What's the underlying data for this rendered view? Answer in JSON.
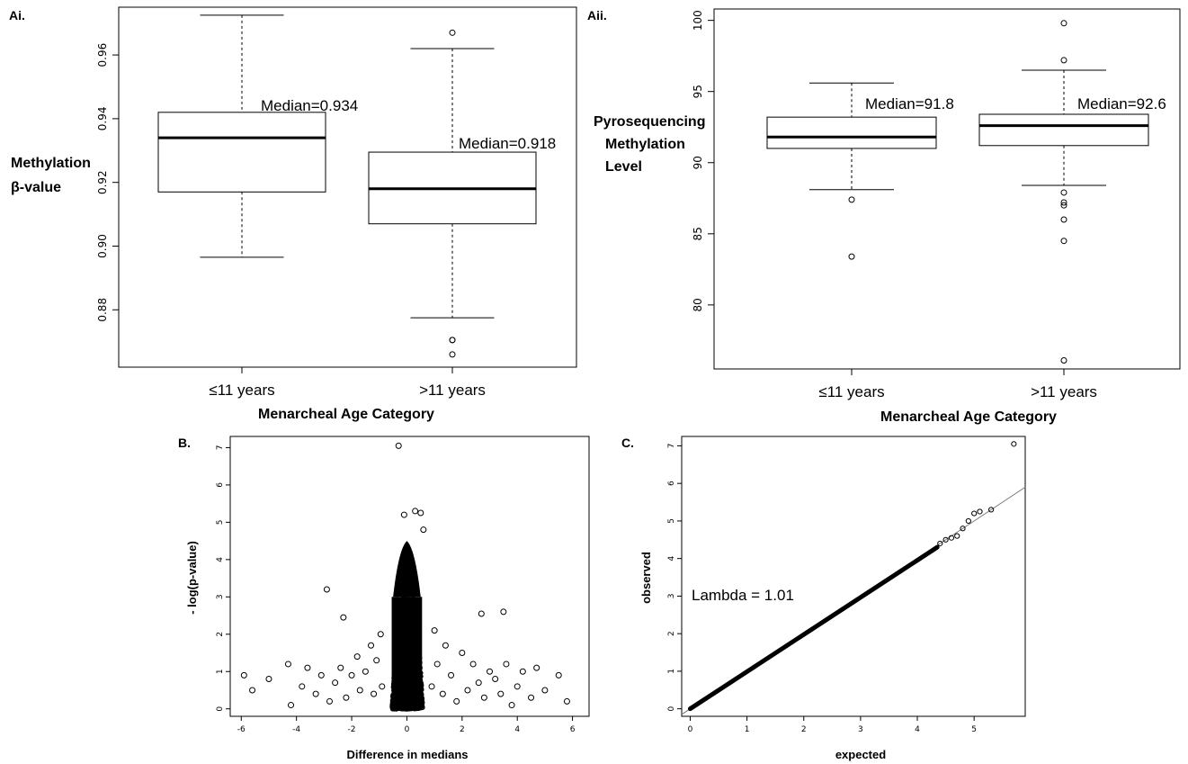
{
  "figure": {
    "panels": {
      "ai": {
        "label": "Ai.",
        "ylabel_line1": "Methylation",
        "ylabel_line2": "β-value",
        "xlabel": "Menarcheal Age Category"
      },
      "aii": {
        "label": "Aii.",
        "ylabel_line1": "Pyrosequencing",
        "ylabel_line2": "Methylation",
        "ylabel_line3": "Level",
        "xlabel": "Menarcheal Age Category"
      },
      "b": {
        "label": "B.",
        "ylabel": "- log(p-value)",
        "xlabel": "Difference in medians"
      },
      "c": {
        "label": "C.",
        "ylabel": "observed",
        "xlabel": "expected",
        "annotation": "Lambda = 1.01"
      }
    }
  },
  "chart_data": [
    {
      "id": "ai",
      "type": "box",
      "categories": [
        "≤11 years",
        ">11 years"
      ],
      "ylim": [
        0.862,
        0.975
      ],
      "yticks": [
        0.88,
        0.9,
        0.92,
        0.94,
        0.96
      ],
      "ytick_labels": [
        "0.88",
        "0.90",
        "0.92",
        "0.94",
        "0.96"
      ],
      "boxes": [
        {
          "whisker_low": 0.8965,
          "q1": 0.917,
          "median": 0.934,
          "q3": 0.942,
          "whisker_high": 0.9725,
          "outliers": [],
          "annotation": "Median=0.934"
        },
        {
          "whisker_low": 0.8775,
          "q1": 0.907,
          "median": 0.918,
          "q3": 0.9295,
          "whisker_high": 0.962,
          "outliers": [
            0.967,
            0.8705,
            0.8705,
            0.866
          ],
          "annotation": "Median=0.918"
        }
      ]
    },
    {
      "id": "aii",
      "type": "box",
      "categories": [
        "≤11 years",
        ">11 years"
      ],
      "ylim": [
        75.5,
        100.8
      ],
      "yticks": [
        80,
        85,
        90,
        95,
        100
      ],
      "ytick_labels": [
        "80",
        "85",
        "90",
        "95",
        "100"
      ],
      "boxes": [
        {
          "whisker_low": 88.1,
          "q1": 91.0,
          "median": 91.8,
          "q3": 93.2,
          "whisker_high": 95.6,
          "outliers": [
            87.4,
            83.4
          ],
          "annotation": "Median=91.8"
        },
        {
          "whisker_low": 88.4,
          "q1": 91.2,
          "median": 92.6,
          "q3": 93.4,
          "whisker_high": 96.5,
          "outliers": [
            99.8,
            97.2,
            87.9,
            87.2,
            87.0,
            86.0,
            84.5,
            76.1
          ],
          "annotation": "Median=92.6"
        }
      ]
    },
    {
      "id": "b",
      "type": "scatter",
      "xlim": [
        -6.4,
        6.6
      ],
      "ylim": [
        -0.2,
        7.3
      ],
      "xticks": [
        -6,
        -4,
        -2,
        0,
        2,
        4,
        6
      ],
      "yticks": [
        0,
        1,
        2,
        3,
        4,
        5,
        6,
        7
      ],
      "points": [
        [
          -0.3,
          7.05
        ],
        [
          -2.9,
          3.2
        ],
        [
          -2.3,
          2.45
        ],
        [
          2.7,
          2.55
        ],
        [
          3.5,
          2.6
        ],
        [
          0.3,
          5.3
        ],
        [
          0.5,
          5.25
        ],
        [
          -0.1,
          5.2
        ],
        [
          0.6,
          4.8
        ],
        [
          -5.9,
          0.9
        ],
        [
          -5.6,
          0.5
        ],
        [
          -5.0,
          0.8
        ],
        [
          -4.3,
          1.2
        ],
        [
          -4.2,
          0.1
        ],
        [
          -3.8,
          0.6
        ],
        [
          -3.6,
          1.1
        ],
        [
          -3.3,
          0.4
        ],
        [
          -3.1,
          0.9
        ],
        [
          -2.8,
          0.2
        ],
        [
          -2.6,
          0.7
        ],
        [
          -2.4,
          1.1
        ],
        [
          -2.2,
          0.3
        ],
        [
          -2.0,
          0.9
        ],
        [
          -1.8,
          1.4
        ],
        [
          -1.7,
          0.5
        ],
        [
          -1.5,
          1.0
        ],
        [
          -1.3,
          1.7
        ],
        [
          -1.2,
          0.4
        ],
        [
          -1.1,
          1.3
        ],
        [
          -0.95,
          2.0
        ],
        [
          -0.9,
          0.6
        ],
        [
          5.8,
          0.2
        ],
        [
          5.5,
          0.9
        ],
        [
          5.0,
          0.5
        ],
        [
          4.7,
          1.1
        ],
        [
          4.5,
          0.3
        ],
        [
          4.2,
          1.0
        ],
        [
          4.0,
          0.6
        ],
        [
          3.8,
          0.1
        ],
        [
          3.6,
          1.2
        ],
        [
          3.4,
          0.4
        ],
        [
          3.2,
          0.8
        ],
        [
          3.0,
          1.0
        ],
        [
          2.8,
          0.3
        ],
        [
          2.6,
          0.7
        ],
        [
          2.4,
          1.2
        ],
        [
          2.2,
          0.5
        ],
        [
          2.0,
          1.5
        ],
        [
          1.8,
          0.2
        ],
        [
          1.6,
          0.9
        ],
        [
          1.4,
          1.7
        ],
        [
          1.3,
          0.4
        ],
        [
          1.1,
          1.2
        ],
        [
          1.0,
          2.1
        ],
        [
          0.9,
          0.6
        ]
      ],
      "note": "dense core of thousands of points around x≈0, y 0–4"
    },
    {
      "id": "c",
      "type": "qq",
      "xlim": [
        -0.15,
        5.9
      ],
      "ylim": [
        -0.2,
        7.25
      ],
      "xticks": [
        0,
        1,
        2,
        3,
        4,
        5
      ],
      "yticks": [
        0,
        1,
        2,
        3,
        4,
        5,
        6,
        7
      ],
      "reference_line": {
        "slope": 1.0,
        "intercept": 0.0
      },
      "tail_points": [
        [
          4.4,
          4.4
        ],
        [
          4.5,
          4.5
        ],
        [
          4.6,
          4.55
        ],
        [
          4.7,
          4.6
        ],
        [
          4.8,
          4.8
        ],
        [
          4.9,
          5.0
        ],
        [
          5.0,
          5.2
        ],
        [
          5.1,
          5.25
        ],
        [
          5.3,
          5.3
        ],
        [
          5.7,
          7.05
        ]
      ]
    }
  ]
}
